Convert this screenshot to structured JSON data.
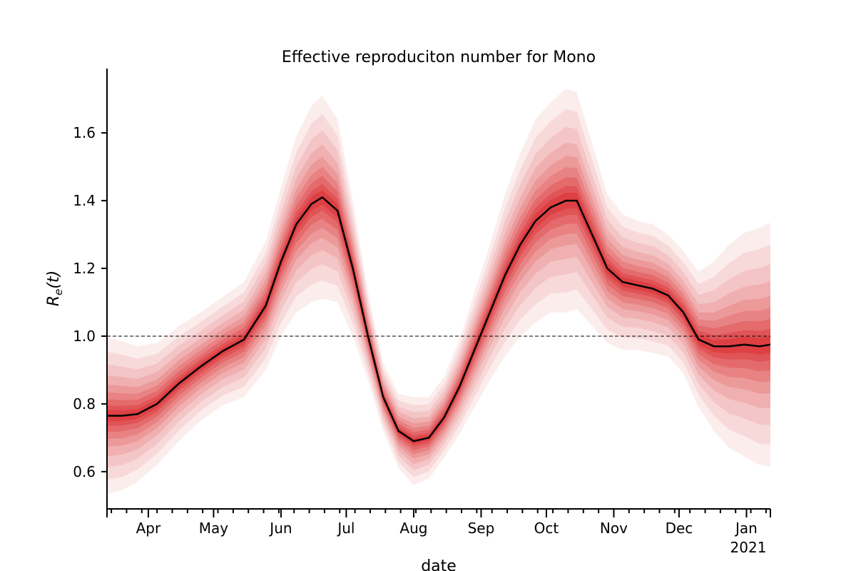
{
  "chart_data": {
    "type": "line",
    "title": "Effective reproduciton number for Mono",
    "xlabel": "date",
    "ylabel_base": "R",
    "ylabel_sub": "e",
    "ylabel_arg": "(t)",
    "ylim": [
      0.49,
      1.79
    ],
    "xlim": [
      "2020-03-13",
      "2021-01-12"
    ],
    "yticks": [
      0.6,
      0.8,
      1.0,
      1.2,
      1.4,
      1.6
    ],
    "ytick_labels": [
      "0.6",
      "0.8",
      "1.0",
      "1.2",
      "1.4",
      "1.6"
    ],
    "xticks_major": [
      "2020-04-01",
      "2020-05-01",
      "2020-06-01",
      "2020-07-01",
      "2020-08-01",
      "2020-09-01",
      "2020-10-01",
      "2020-11-01",
      "2020-12-01",
      "2021-01-01"
    ],
    "xtick_labels": [
      "Apr",
      "May",
      "Jun",
      "Jul",
      "Aug",
      "Sep",
      "Oct",
      "Nov",
      "Dec",
      "Jan"
    ],
    "xtick_year_label": "2021",
    "reference_line": {
      "y": 1.0,
      "style": "dashed"
    },
    "series": [
      {
        "color": "#000000",
        "x": [
          "2020-03-13",
          "2020-03-20",
          "2020-03-27",
          "2020-04-05",
          "2020-04-15",
          "2020-04-25",
          "2020-05-05",
          "2020-05-15",
          "2020-05-25",
          "2020-06-01",
          "2020-06-08",
          "2020-06-15",
          "2020-06-20",
          "2020-06-27",
          "2020-07-04",
          "2020-07-11",
          "2020-07-18",
          "2020-07-25",
          "2020-08-01",
          "2020-08-08",
          "2020-08-15",
          "2020-08-22",
          "2020-08-29",
          "2020-09-05",
          "2020-09-12",
          "2020-09-19",
          "2020-09-26",
          "2020-10-03",
          "2020-10-10",
          "2020-10-15",
          "2020-10-22",
          "2020-10-29",
          "2020-11-05",
          "2020-11-12",
          "2020-11-19",
          "2020-11-26",
          "2020-12-03",
          "2020-12-10",
          "2020-12-17",
          "2020-12-24",
          "2020-12-31",
          "2021-01-07",
          "2021-01-12"
        ],
        "y": [
          0.765,
          0.765,
          0.77,
          0.8,
          0.86,
          0.91,
          0.955,
          0.99,
          1.09,
          1.22,
          1.33,
          1.39,
          1.41,
          1.37,
          1.2,
          1.0,
          0.82,
          0.72,
          0.69,
          0.7,
          0.76,
          0.85,
          0.96,
          1.07,
          1.18,
          1.27,
          1.34,
          1.38,
          1.4,
          1.4,
          1.3,
          1.2,
          1.16,
          1.15,
          1.14,
          1.12,
          1.07,
          0.99,
          0.97,
          0.97,
          0.975,
          0.97,
          0.975
        ],
        "band_half_widths": [
          0.23,
          0.22,
          0.2,
          0.18,
          0.17,
          0.16,
          0.16,
          0.17,
          0.19,
          0.22,
          0.26,
          0.29,
          0.3,
          0.27,
          0.2,
          0.13,
          0.1,
          0.11,
          0.13,
          0.12,
          0.12,
          0.14,
          0.17,
          0.2,
          0.24,
          0.27,
          0.3,
          0.31,
          0.33,
          0.32,
          0.27,
          0.22,
          0.2,
          0.19,
          0.19,
          0.18,
          0.18,
          0.2,
          0.25,
          0.3,
          0.33,
          0.35,
          0.36
        ]
      }
    ],
    "band_color": "#d7191c",
    "grid": false
  }
}
